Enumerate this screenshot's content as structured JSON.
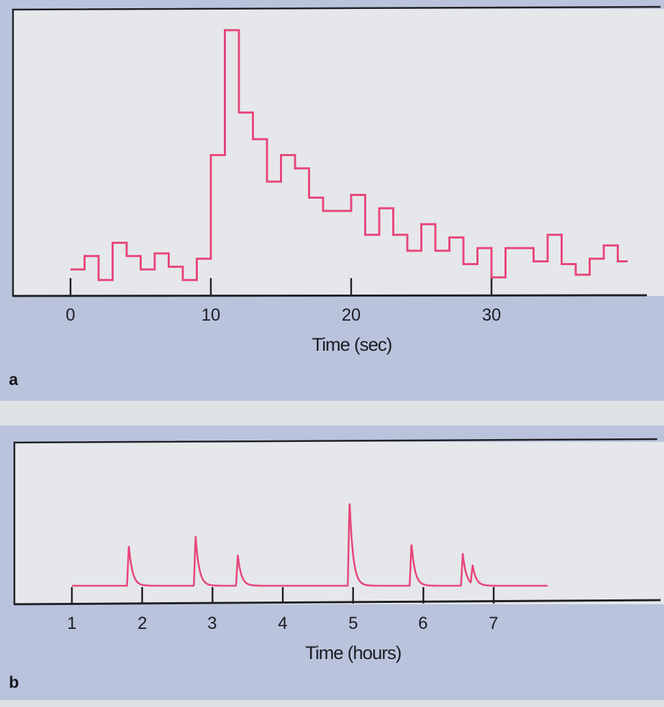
{
  "colors": {
    "trace": "#e8457a",
    "axis": "#1e1e24",
    "paper": "#e5e7ea",
    "background": "#b9c3dc",
    "strip": "#dfe3e6"
  },
  "chart_data": [
    {
      "type": "line",
      "style": "step histogram",
      "panel_label": "a",
      "xlabel": "Time (sec)",
      "ylabel": "",
      "x_ticks": [
        "0",
        "10",
        "20",
        "30"
      ],
      "xlim": [
        -4.1,
        42.5
      ],
      "ylim": [
        0,
        108
      ],
      "bin_width": 1,
      "bin_start": 0,
      "values": [
        10,
        15,
        6,
        20,
        15,
        10,
        16,
        11,
        6,
        14,
        53,
        100,
        69,
        59,
        43,
        53,
        48,
        37,
        32,
        32,
        38,
        23,
        33,
        23,
        17,
        27,
        17,
        22,
        12,
        18,
        7,
        18,
        18,
        13,
        23,
        12,
        8,
        14,
        19,
        13
      ],
      "last_bin_end": 39.7,
      "grid": false
    },
    {
      "type": "line",
      "panel_label": "b",
      "xlabel": "Time (hours)",
      "ylabel": "",
      "x_ticks": [
        "1",
        "2",
        "3",
        "4",
        "5",
        "6",
        "7"
      ],
      "xlim": [
        0.15,
        9.4
      ],
      "ylim": [
        0,
        94
      ],
      "baseline": 10,
      "x_start": 1,
      "x_end": 7.77,
      "peaks": [
        {
          "t": 1.81,
          "value": 34
        },
        {
          "t": 2.76,
          "value": 39
        },
        {
          "t": 3.36,
          "value": 28
        },
        {
          "t": 4.95,
          "value": 60
        },
        {
          "t": 5.83,
          "value": 35
        },
        {
          "t": 6.56,
          "value": 29
        },
        {
          "t": 6.7,
          "value": 21
        }
      ],
      "grid": false
    }
  ]
}
